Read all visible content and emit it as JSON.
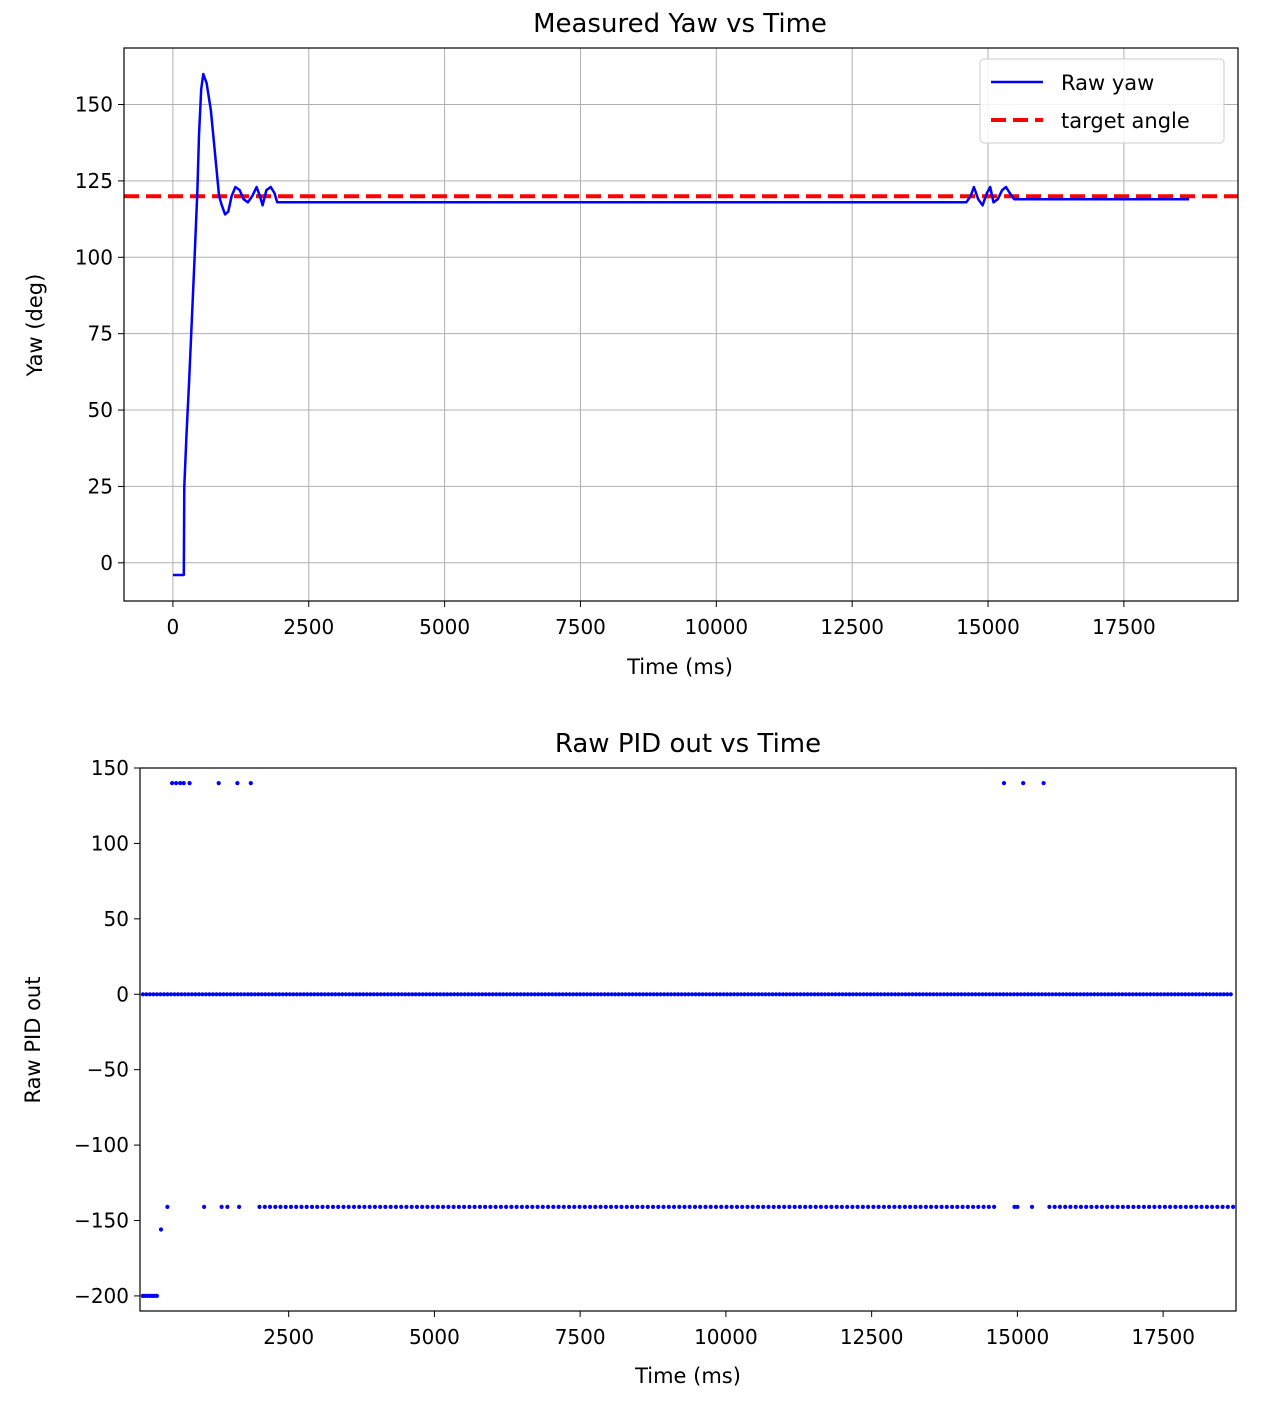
{
  "chart_data": [
    {
      "type": "line",
      "title": "Measured Yaw vs Time",
      "xlabel": "Time (ms)",
      "ylabel": "Yaw (deg)",
      "xlim": [
        -900,
        19600
      ],
      "ylim": [
        -12.5,
        168.5
      ],
      "xticks": [
        0,
        2500,
        5000,
        7500,
        10000,
        12500,
        15000,
        17500
      ],
      "xtick_labels": [
        "0",
        "2500",
        "5000",
        "7500",
        "10000",
        "12500",
        "15000",
        "17500"
      ],
      "yticks": [
        0,
        25,
        50,
        75,
        100,
        125,
        150
      ],
      "ytick_labels": [
        "0",
        "25",
        "50",
        "75",
        "100",
        "125",
        "150"
      ],
      "grid": true,
      "legend": "top-right",
      "series": [
        {
          "name": "Raw yaw",
          "color": "#0000ff",
          "style": "solid",
          "points": [
            [
              0,
              -4
            ],
            [
              200,
              -4
            ],
            [
              210,
              25
            ],
            [
              250,
              42
            ],
            [
              300,
              60
            ],
            [
              350,
              80
            ],
            [
              400,
              100
            ],
            [
              450,
              122
            ],
            [
              480,
              140
            ],
            [
              520,
              155
            ],
            [
              560,
              160
            ],
            [
              620,
              157
            ],
            [
              700,
              148
            ],
            [
              780,
              133
            ],
            [
              850,
              120
            ],
            [
              900,
              117
            ],
            [
              960,
              114
            ],
            [
              1020,
              115
            ],
            [
              1080,
              120
            ],
            [
              1150,
              123
            ],
            [
              1230,
              122
            ],
            [
              1300,
              119
            ],
            [
              1380,
              118
            ],
            [
              1460,
              120
            ],
            [
              1540,
              123
            ],
            [
              1600,
              120
            ],
            [
              1650,
              117
            ],
            [
              1720,
              122
            ],
            [
              1800,
              123
            ],
            [
              1870,
              121
            ],
            [
              1920,
              118
            ],
            [
              2000,
              118
            ],
            [
              5000,
              118
            ],
            [
              10000,
              118
            ],
            [
              14600,
              118
            ],
            [
              14680,
              120
            ],
            [
              14740,
              123
            ],
            [
              14820,
              119
            ],
            [
              14900,
              117
            ],
            [
              14980,
              121
            ],
            [
              15040,
              123
            ],
            [
              15100,
              118
            ],
            [
              15180,
              119
            ],
            [
              15260,
              122
            ],
            [
              15330,
              123
            ],
            [
              15400,
              121
            ],
            [
              15480,
              119
            ],
            [
              16000,
              119
            ],
            [
              18700,
              119
            ]
          ]
        },
        {
          "name": "target angle",
          "color": "#ff0000",
          "style": "dashed",
          "points": [
            [
              -900,
              120
            ],
            [
              19600,
              120
            ]
          ]
        }
      ]
    },
    {
      "type": "scatter",
      "title": "Raw PID out vs Time",
      "xlabel": "Time (ms)",
      "ylabel": "Raw PID out",
      "xlim": [
        -50,
        18750
      ],
      "ylim": [
        -210,
        150
      ],
      "xticks": [
        2500,
        5000,
        7500,
        10000,
        12500,
        15000,
        17500
      ],
      "xtick_labels": [
        "2500",
        "5000",
        "7500",
        "10000",
        "12500",
        "15000",
        "17500"
      ],
      "yticks": [
        150,
        100,
        50,
        0,
        -50,
        -100,
        -150,
        -200
      ],
      "ytick_labels": [
        "150",
        "100",
        "50",
        "0",
        "−50",
        "−100",
        "−150",
        "−200"
      ],
      "grid": false,
      "series": [
        {
          "color": "#0000ff",
          "points": [
            [
              0,
              -200
            ],
            [
              40,
              -200
            ],
            [
              80,
              -200
            ],
            [
              120,
              -200
            ],
            [
              160,
              -200
            ],
            [
              200,
              -200
            ],
            [
              240,
              -200
            ],
            [
              310,
              -156
            ],
            [
              420,
              -141
            ],
            [
              500,
              140
            ],
            [
              570,
              140
            ],
            [
              640,
              140
            ],
            [
              700,
              140
            ],
            [
              800,
              140
            ],
            [
              1050,
              -141
            ],
            [
              1300,
              140
            ],
            [
              1350,
              -141
            ],
            [
              1450,
              -141
            ],
            [
              1620,
              140
            ],
            [
              1650,
              -141
            ],
            [
              1850,
              140
            ],
            [
              14770,
              140
            ],
            [
              15100,
              140
            ],
            [
              15450,
              140
            ],
            [
              14950,
              -141
            ],
            [
              15000,
              -141
            ],
            [
              15250,
              -141
            ]
          ],
          "rows": [
            {
              "y": 0,
              "x_start": 0,
              "x_end": 18700,
              "step": 60
            },
            {
              "y": -141,
              "x_start": 2000,
              "x_end": 14650,
              "step": 90
            },
            {
              "y": -141,
              "x_start": 15550,
              "x_end": 18700,
              "step": 90
            }
          ]
        }
      ]
    }
  ]
}
